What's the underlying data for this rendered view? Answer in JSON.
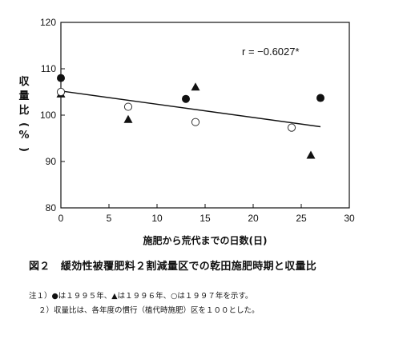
{
  "chart_data": {
    "type": "scatter",
    "ylabel": "収量比(%)",
    "xlabel": "施肥から荒代までの日数(日)",
    "xlim": [
      0,
      30
    ],
    "ylim": [
      80,
      120
    ],
    "xticks": [
      0,
      5,
      10,
      15,
      20,
      25,
      30
    ],
    "yticks": [
      80,
      90,
      100,
      110,
      120
    ],
    "annotation": "r = −0.6027*",
    "regression": {
      "x": [
        0,
        27
      ],
      "y": [
        105.2,
        97.5
      ]
    },
    "series": [
      {
        "marker": "filled-circle",
        "points": [
          {
            "x": 0,
            "y": 108
          },
          {
            "x": 13,
            "y": 103.5
          },
          {
            "x": 27,
            "y": 103.7
          }
        ]
      },
      {
        "marker": "filled-triangle",
        "points": [
          {
            "x": 0,
            "y": 104.5
          },
          {
            "x": 7,
            "y": 99
          },
          {
            "x": 14,
            "y": 106
          },
          {
            "x": 26,
            "y": 91.3
          }
        ]
      },
      {
        "marker": "open-circle",
        "points": [
          {
            "x": 0,
            "y": 105
          },
          {
            "x": 7,
            "y": 101.8
          },
          {
            "x": 14,
            "y": 98.5
          },
          {
            "x": 24,
            "y": 97.3
          }
        ]
      }
    ],
    "grid": false
  },
  "caption": "図２　緩効性被覆肥料２割減量区での乾田施肥時期と収量比",
  "notes": [
    "注１）●は１９９５年、▲は１９９６年、○は１９９７年を示す。",
    "２）収量比は、各年度の慣行（植代時施肥）区を１００とした。"
  ],
  "colors": {
    "ink": "#111111",
    "background": "#ffffff"
  }
}
